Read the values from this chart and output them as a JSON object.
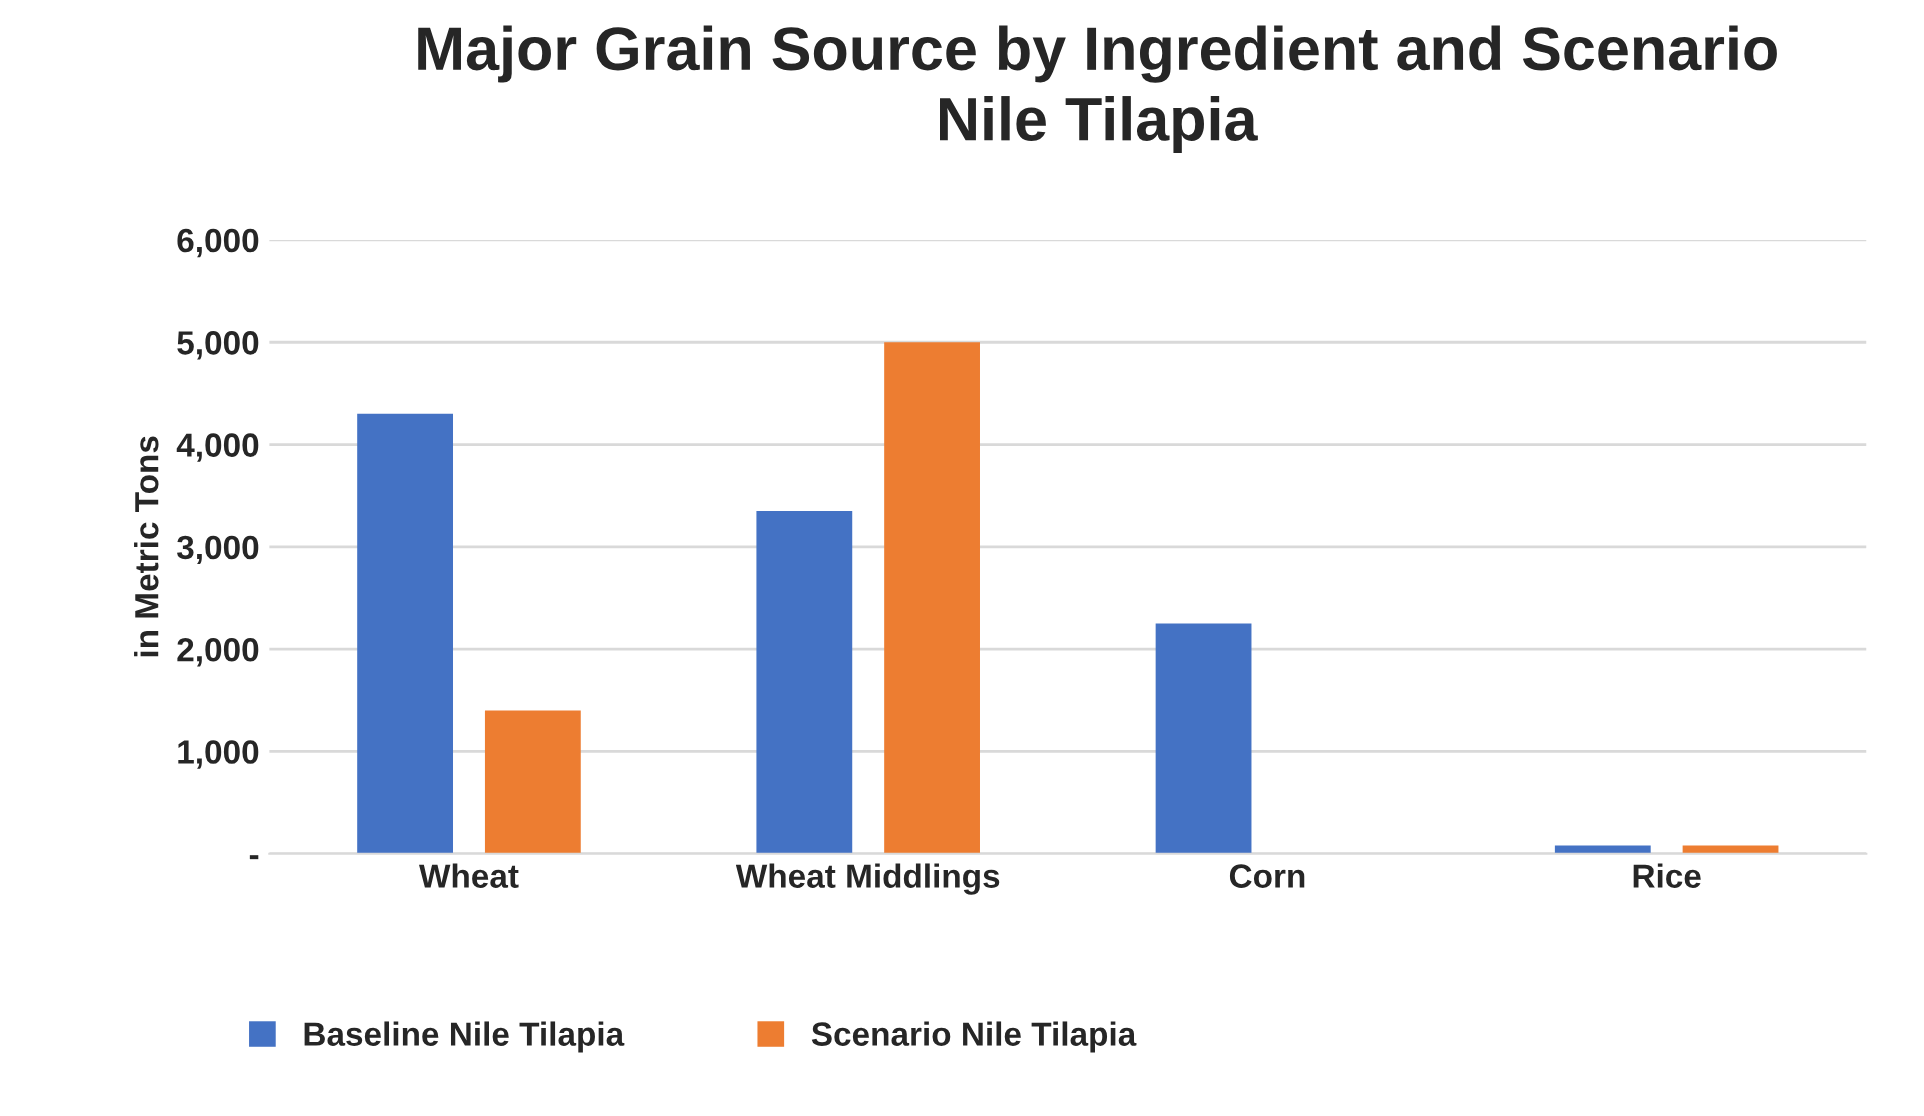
{
  "chart_data": {
    "type": "bar",
    "title": "Major Grain Source by Ingredient and Scenario\nNile Tilapia",
    "ylabel": "in Metric Tons",
    "categories": [
      "Wheat",
      "Wheat Middlings",
      "Corn",
      "Rice"
    ],
    "series": [
      {
        "name": "Baseline Nile Tilapia",
        "color": "#4472c4",
        "values": [
          4300,
          3350,
          2250,
          80
        ]
      },
      {
        "name": "Scenario Nile Tilapia",
        "color": "#ed7d31",
        "values": [
          1400,
          5000,
          null,
          80
        ]
      }
    ],
    "ylim": [
      0,
      6000
    ],
    "yticks": [
      {
        "value": 0,
        "label": "-"
      },
      {
        "value": 1000,
        "label": "1,000"
      },
      {
        "value": 2000,
        "label": "2,000"
      },
      {
        "value": 3000,
        "label": "3,000"
      },
      {
        "value": 4000,
        "label": "4,000"
      },
      {
        "value": 5000,
        "label": "5,000"
      },
      {
        "value": 6000,
        "label": "6,000"
      }
    ],
    "grid": "y",
    "legend": "bottom"
  }
}
